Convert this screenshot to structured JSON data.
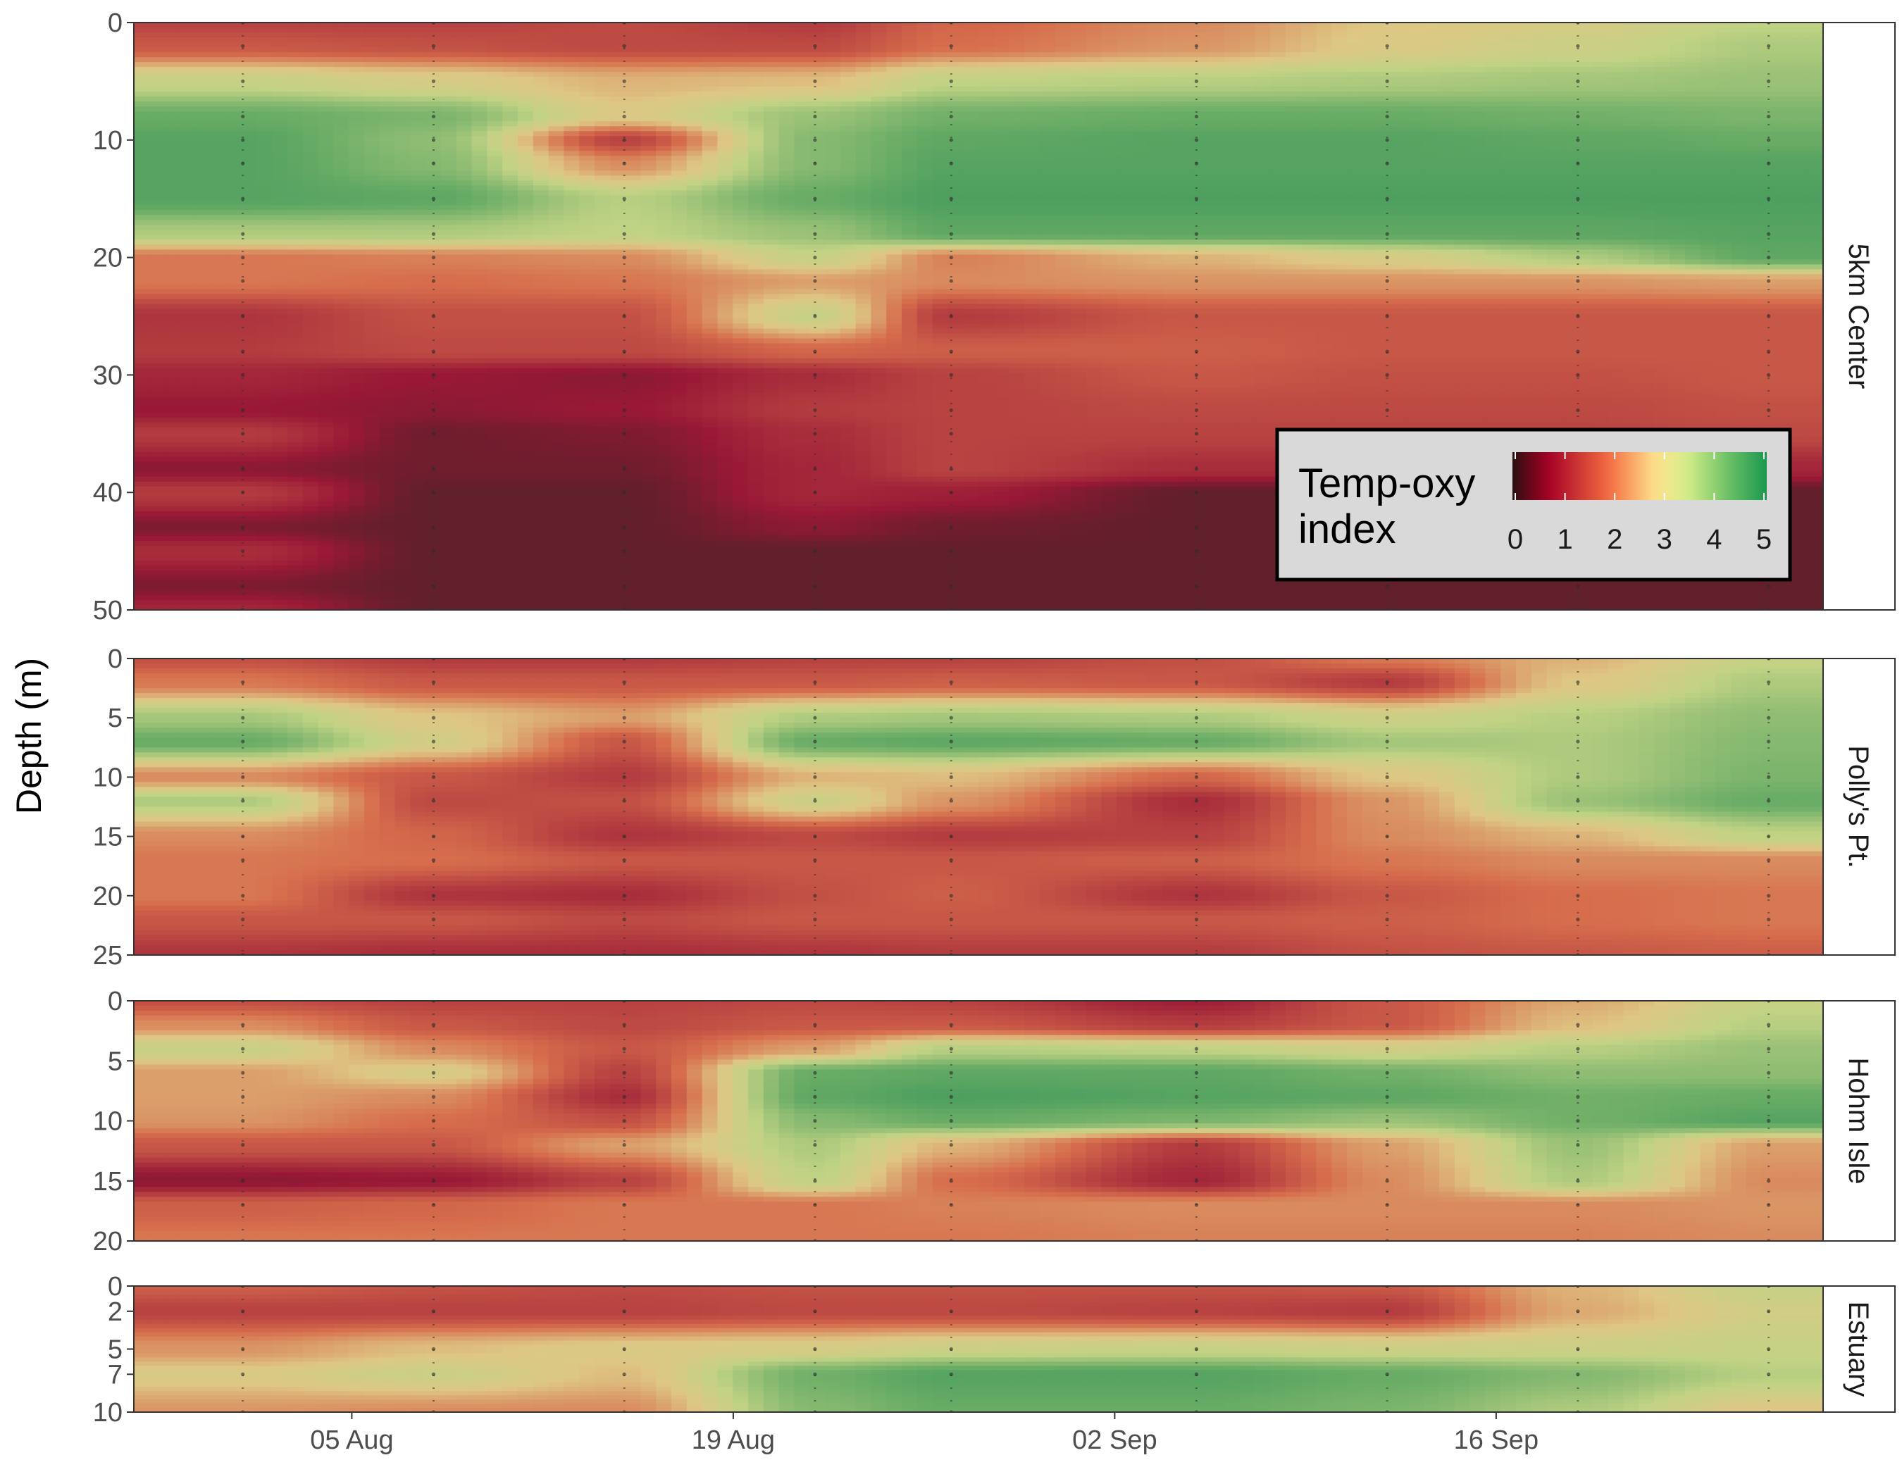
{
  "chart_data": {
    "type": "heatmap",
    "ylabel": "Depth (m)",
    "xlabel": "",
    "x_ticks": [
      "05 Aug",
      "19 Aug",
      "02 Sep",
      "16 Sep"
    ],
    "x_tick_dates": [
      "2019-08-05",
      "2019-08-19",
      "2019-09-02",
      "2019-09-16"
    ],
    "x_range": [
      "2019-07-28",
      "2019-09-28"
    ],
    "sample_dates": [
      "2019-08-01",
      "2019-08-08",
      "2019-08-15",
      "2019-08-22",
      "2019-08-27",
      "2019-09-05",
      "2019-09-12",
      "2019-09-19",
      "2019-09-26"
    ],
    "legend": {
      "title": [
        "Temp-oxy",
        "index"
      ],
      "ticks": [
        "0",
        "1",
        "2",
        "3",
        "4",
        "5"
      ],
      "range": [
        0,
        5
      ],
      "placement": "bottom-right of first panel",
      "colors": [
        "#2a0f0f",
        "#a50026",
        "#f46d43",
        "#fee08b",
        "#d9ef8b",
        "#66bd63",
        "#1a9850"
      ]
    },
    "panels": [
      {
        "name": "5km Center",
        "y_range": [
          0,
          50
        ],
        "y_ticks": [
          "0",
          "10",
          "20",
          "30",
          "40",
          "50"
        ],
        "y_tick_values": [
          0,
          10,
          20,
          30,
          40,
          50
        ],
        "depths": [
          0,
          2,
          5,
          8,
          10,
          12,
          15,
          18,
          20,
          22,
          25,
          28,
          30,
          33,
          35,
          38,
          40,
          43,
          45,
          48,
          50
        ],
        "z": [
          [
            1.3,
            1.3,
            1.4,
            1.2,
            1.8,
            2.2,
            2.8,
            3.0,
            3.4
          ],
          [
            1.6,
            1.5,
            1.4,
            1.4,
            1.9,
            2.3,
            2.9,
            3.2,
            3.6
          ],
          [
            3.3,
            3.0,
            2.6,
            2.7,
            3.4,
            3.5,
            3.6,
            3.7,
            3.8
          ],
          [
            4.3,
            4.1,
            2.9,
            3.8,
            4.2,
            4.3,
            4.3,
            4.2,
            4.1
          ],
          [
            4.5,
            3.9,
            1.3,
            4.0,
            4.4,
            4.5,
            4.5,
            4.4,
            4.3
          ],
          [
            4.5,
            4.0,
            2.2,
            4.0,
            4.5,
            4.5,
            4.5,
            4.5,
            4.5
          ],
          [
            4.5,
            4.4,
            3.5,
            4.3,
            4.6,
            4.6,
            4.6,
            4.6,
            4.6
          ],
          [
            3.6,
            3.6,
            3.4,
            3.8,
            4.4,
            4.4,
            4.4,
            4.4,
            4.5
          ],
          [
            2.0,
            2.1,
            2.2,
            3.3,
            2.1,
            2.6,
            3.0,
            3.6,
            4.4
          ],
          [
            2.0,
            1.9,
            2.0,
            2.4,
            2.2,
            2.3,
            2.3,
            2.3,
            2.4
          ],
          [
            1.1,
            1.5,
            1.5,
            3.3,
            1.2,
            1.6,
            1.6,
            1.6,
            1.6
          ],
          [
            1.2,
            1.4,
            1.4,
            1.8,
            1.7,
            1.7,
            1.6,
            1.6,
            1.6
          ],
          [
            0.9,
            0.7,
            0.6,
            1.0,
            1.3,
            1.6,
            1.5,
            1.5,
            1.6
          ],
          [
            0.7,
            0.6,
            0.7,
            1.2,
            1.3,
            1.4,
            1.4,
            1.4,
            1.5
          ],
          [
            1.2,
            0.4,
            0.5,
            1.0,
            1.3,
            1.3,
            1.3,
            1.3,
            1.4
          ],
          [
            0.6,
            0.4,
            0.4,
            0.9,
            1.3,
            1.0,
            1.0,
            1.0,
            0.9
          ],
          [
            1.2,
            0.3,
            0.3,
            0.9,
            0.8,
            0.3,
            0.3,
            0.3,
            0.3
          ],
          [
            0.5,
            0.3,
            0.3,
            0.6,
            0.4,
            0.3,
            0.3,
            0.3,
            0.3
          ],
          [
            1.0,
            0.3,
            0.3,
            0.3,
            0.3,
            0.3,
            0.3,
            0.3,
            0.3
          ],
          [
            0.5,
            0.3,
            0.3,
            0.3,
            0.3,
            0.3,
            0.3,
            0.3,
            0.3
          ],
          [
            0.9,
            0.3,
            0.3,
            0.3,
            0.3,
            0.3,
            0.3,
            0.3,
            0.3
          ]
        ]
      },
      {
        "name": "Polly's Pt.",
        "y_range": [
          0,
          25
        ],
        "y_ticks": [
          "0",
          "5",
          "10",
          "15",
          "20",
          "25"
        ],
        "y_tick_values": [
          0,
          5,
          10,
          15,
          20,
          25
        ],
        "depths": [
          0,
          2,
          5,
          7,
          10,
          12,
          15,
          17,
          20,
          22,
          25
        ],
        "z": [
          [
            1.5,
            1.2,
            1.2,
            1.3,
            1.3,
            1.5,
            2.0,
            2.6,
            3.3
          ],
          [
            2.0,
            1.6,
            1.6,
            1.6,
            1.7,
            1.6,
            1.2,
            2.8,
            3.6
          ],
          [
            3.7,
            2.8,
            2.4,
            3.6,
            3.7,
            3.6,
            3.2,
            3.5,
            3.9
          ],
          [
            4.3,
            3.1,
            1.6,
            4.3,
            4.4,
            4.3,
            3.7,
            3.6,
            4.0
          ],
          [
            2.2,
            1.6,
            1.2,
            2.6,
            2.7,
            1.8,
            2.8,
            3.6,
            4.1
          ],
          [
            3.6,
            1.4,
            1.5,
            3.2,
            2.3,
            1.0,
            2.3,
            3.8,
            4.3
          ],
          [
            2.2,
            1.8,
            1.1,
            1.4,
            1.2,
            1.3,
            2.2,
            2.6,
            3.4
          ],
          [
            2.0,
            1.9,
            1.6,
            1.6,
            1.6,
            1.7,
            2.0,
            2.2,
            2.2
          ],
          [
            2.0,
            1.1,
            1.0,
            1.5,
            1.7,
            1.1,
            1.6,
            1.9,
            2.0
          ],
          [
            1.6,
            1.6,
            1.4,
            1.6,
            1.6,
            1.6,
            1.7,
            1.9,
            2.0
          ],
          [
            1.1,
            1.0,
            1.0,
            1.1,
            1.2,
            1.2,
            1.5,
            1.6,
            1.7
          ]
        ]
      },
      {
        "name": "Hohm Isle",
        "y_range": [
          0,
          20
        ],
        "y_ticks": [
          "0",
          "5",
          "10",
          "15",
          "20"
        ],
        "y_tick_values": [
          0,
          5,
          10,
          15,
          20
        ],
        "depths": [
          0,
          2,
          4,
          6,
          8,
          10,
          12,
          15,
          17,
          20
        ],
        "z": [
          [
            1.5,
            1.3,
            1.3,
            1.4,
            1.3,
            0.8,
            1.6,
            2.5,
            3.3
          ],
          [
            2.2,
            1.6,
            1.4,
            1.6,
            1.6,
            1.2,
            1.6,
            2.7,
            3.5
          ],
          [
            3.3,
            2.2,
            1.6,
            2.4,
            3.5,
            3.4,
            3.1,
            3.5,
            3.8
          ],
          [
            2.4,
            3.0,
            1.3,
            4.3,
            4.4,
            4.4,
            4.2,
            3.9,
            3.9
          ],
          [
            2.4,
            2.2,
            1.0,
            4.4,
            4.6,
            4.5,
            4.4,
            4.2,
            4.3
          ],
          [
            2.3,
            1.9,
            1.5,
            4.0,
            4.3,
            4.1,
            3.8,
            4.2,
            4.5
          ],
          [
            1.6,
            1.6,
            2.4,
            3.6,
            2.6,
            1.2,
            2.4,
            3.8,
            2.4
          ],
          [
            0.6,
            0.7,
            1.3,
            3.4,
            1.9,
            0.9,
            2.2,
            3.6,
            2.2
          ],
          [
            1.7,
            1.8,
            2.0,
            2.0,
            2.1,
            2.2,
            2.2,
            2.2,
            2.3
          ],
          [
            2.0,
            2.0,
            2.0,
            2.0,
            2.0,
            2.1,
            2.1,
            2.1,
            2.2
          ]
        ]
      },
      {
        "name": "Estuary",
        "y_range": [
          0,
          10
        ],
        "y_ticks": [
          "0",
          "2",
          "5",
          "7",
          "10"
        ],
        "y_tick_values": [
          0,
          2,
          5,
          7,
          10
        ],
        "depths": [
          0,
          2,
          5,
          7,
          10
        ],
        "z": [
          [
            1.7,
            1.5,
            1.4,
            1.5,
            1.5,
            1.5,
            1.6,
            2.6,
            3.3
          ],
          [
            1.3,
            1.3,
            1.3,
            1.4,
            1.4,
            1.3,
            1.2,
            2.5,
            3.1
          ],
          [
            2.3,
            2.7,
            2.9,
            3.0,
            3.2,
            3.3,
            3.2,
            3.2,
            3.3
          ],
          [
            2.9,
            3.2,
            2.7,
            4.2,
            4.5,
            4.5,
            4.3,
            4.0,
            3.5
          ],
          [
            2.3,
            2.2,
            2.2,
            4.0,
            4.3,
            4.3,
            4.1,
            3.6,
            2.8
          ]
        ]
      }
    ]
  }
}
